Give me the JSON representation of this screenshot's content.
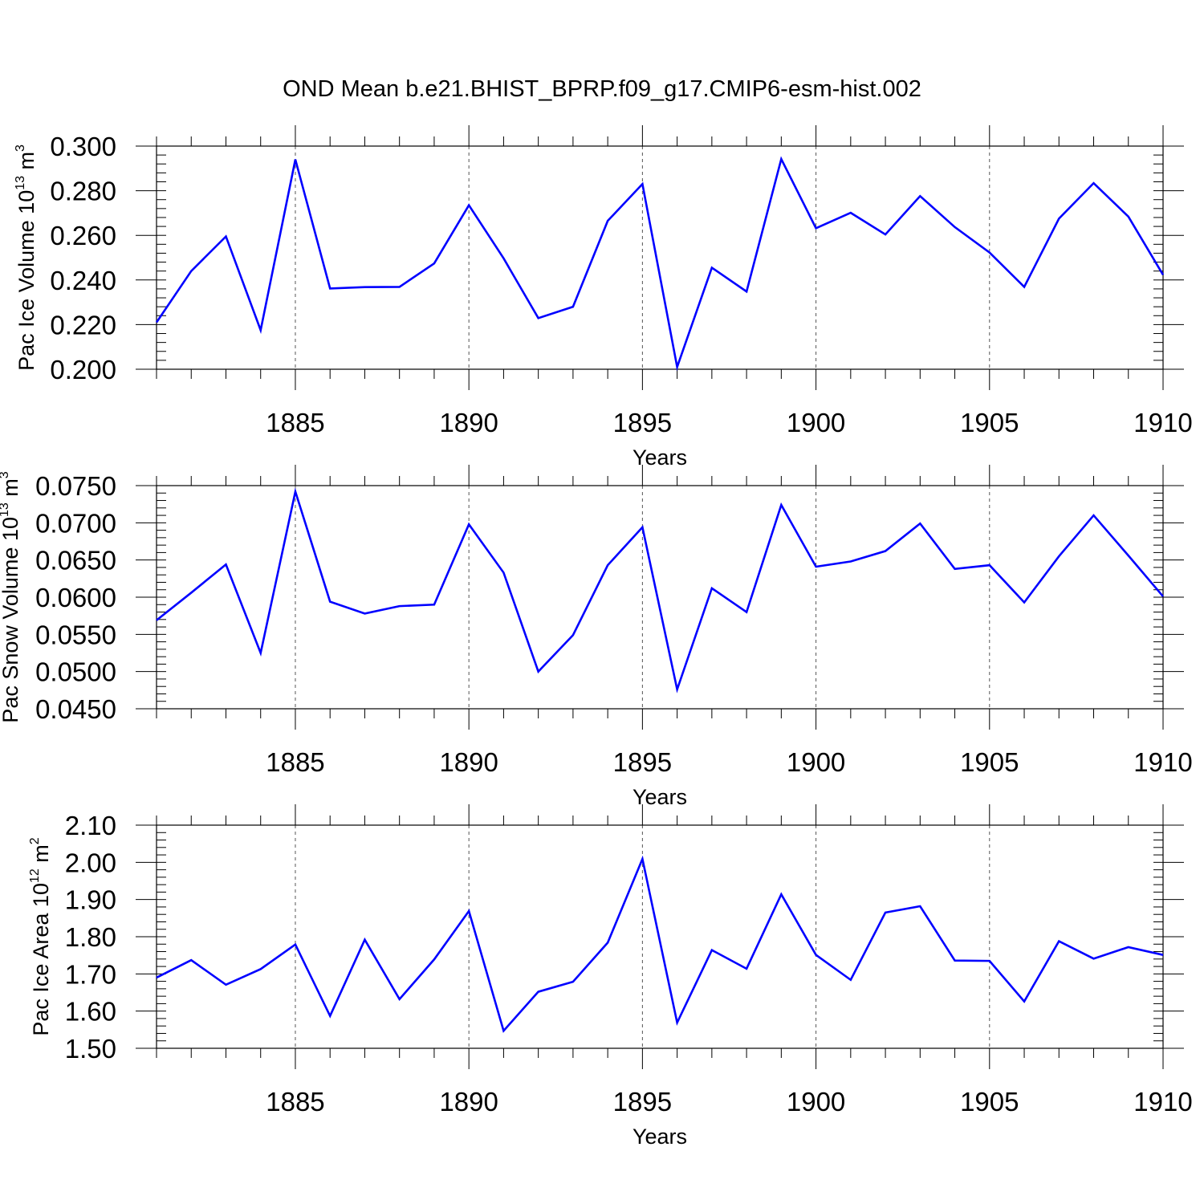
{
  "colors": {
    "line": "#0000ff",
    "axis": "#000000",
    "grid": "#555555"
  },
  "chart_data": {
    "title": "OND Mean b.e21.BHIST_BPRP.f09_g17.CMIP6-esm-hist.002",
    "xlim": [
      1881,
      1910
    ],
    "panels": [
      {
        "type": "line",
        "name": "Pac Ice Volume",
        "ylabel": "Pac Ice Volume 10",
        "ylabel_exp": "13",
        "ylabel_unit": " m",
        "ylabel_unit_exp": "3",
        "xlabel": "Years",
        "ylim": [
          0.2,
          0.3
        ],
        "yticks": [
          "0.300",
          "0.280",
          "0.260",
          "0.240",
          "0.220",
          "0.200"
        ],
        "ytick_values": [
          0.3,
          0.28,
          0.26,
          0.24,
          0.22,
          0.2
        ],
        "xticks": [
          "1885",
          "1890",
          "1895",
          "1900",
          "1905",
          "1910"
        ],
        "xtick_values": [
          1885,
          1890,
          1895,
          1900,
          1905,
          1910
        ],
        "x": [
          1881,
          1882,
          1883,
          1884,
          1885,
          1886,
          1887,
          1888,
          1889,
          1890,
          1891,
          1892,
          1893,
          1894,
          1895,
          1896,
          1897,
          1898,
          1899,
          1900,
          1901,
          1902,
          1903,
          1904,
          1905,
          1906,
          1907,
          1908,
          1909,
          1910
        ],
        "values": [
          0.221,
          0.244,
          0.2595,
          0.2175,
          0.294,
          0.2362,
          0.2368,
          0.2369,
          0.2474,
          0.2735,
          0.2497,
          0.2229,
          0.228,
          0.2665,
          0.283,
          0.201,
          0.2455,
          0.2348,
          0.2942,
          0.2632,
          0.2701,
          0.2604,
          0.2776,
          0.2637,
          0.2523,
          0.2369,
          0.2675,
          0.2834,
          0.2684,
          0.2423
        ]
      },
      {
        "type": "line",
        "name": "Pac Snow Volume",
        "ylabel": "Pac Snow Volume 10",
        "ylabel_exp": "13",
        "ylabel_unit": " m",
        "ylabel_unit_exp": "3",
        "xlabel": "Years",
        "ylim": [
          0.045,
          0.075
        ],
        "yticks": [
          "0.0750",
          "0.0700",
          "0.0650",
          "0.0600",
          "0.0550",
          "0.0500",
          "0.0450"
        ],
        "ytick_values": [
          0.075,
          0.07,
          0.065,
          0.06,
          0.055,
          0.05,
          0.045
        ],
        "xticks": [
          "1885",
          "1890",
          "1895",
          "1900",
          "1905",
          "1910"
        ],
        "xtick_values": [
          1885,
          1890,
          1895,
          1900,
          1905,
          1910
        ],
        "x": [
          1881,
          1882,
          1883,
          1884,
          1885,
          1886,
          1887,
          1888,
          1889,
          1890,
          1891,
          1892,
          1893,
          1894,
          1895,
          1896,
          1897,
          1898,
          1899,
          1900,
          1901,
          1902,
          1903,
          1904,
          1905,
          1906,
          1907,
          1908,
          1909,
          1910
        ],
        "values": [
          0.0569,
          0.0606,
          0.0644,
          0.0525,
          0.0742,
          0.0594,
          0.0578,
          0.0588,
          0.059,
          0.0698,
          0.0633,
          0.05,
          0.0549,
          0.0643,
          0.0694,
          0.0476,
          0.0612,
          0.058,
          0.0724,
          0.0641,
          0.0648,
          0.0662,
          0.0699,
          0.0638,
          0.0643,
          0.0593,
          0.0655,
          0.071,
          0.0656,
          0.0601
        ]
      },
      {
        "type": "line",
        "name": "Pac Ice Area",
        "ylabel": "Pac Ice Area 10",
        "ylabel_exp": "12",
        "ylabel_unit": " m",
        "ylabel_unit_exp": "2",
        "xlabel": "Years",
        "ylim": [
          1.5,
          2.1
        ],
        "yticks": [
          "2.10",
          "2.00",
          "1.90",
          "1.80",
          "1.70",
          "1.60",
          "1.50"
        ],
        "ytick_values": [
          2.1,
          2.0,
          1.9,
          1.8,
          1.7,
          1.6,
          1.5
        ],
        "xticks": [
          "1885",
          "1890",
          "1895",
          "1900",
          "1905",
          "1910"
        ],
        "xtick_values": [
          1885,
          1890,
          1895,
          1900,
          1905,
          1910
        ],
        "x": [
          1881,
          1882,
          1883,
          1884,
          1885,
          1886,
          1887,
          1888,
          1889,
          1890,
          1891,
          1892,
          1893,
          1894,
          1895,
          1896,
          1897,
          1898,
          1899,
          1900,
          1901,
          1902,
          1903,
          1904,
          1905,
          1906,
          1907,
          1908,
          1909,
          1910
        ],
        "values": [
          1.69,
          1.737,
          1.671,
          1.713,
          1.779,
          1.587,
          1.792,
          1.632,
          1.739,
          1.869,
          1.547,
          1.652,
          1.679,
          1.784,
          2.009,
          1.569,
          1.764,
          1.714,
          1.914,
          1.751,
          1.684,
          1.865,
          1.882,
          1.736,
          1.735,
          1.626,
          1.788,
          1.741,
          1.772,
          1.751
        ]
      }
    ]
  }
}
